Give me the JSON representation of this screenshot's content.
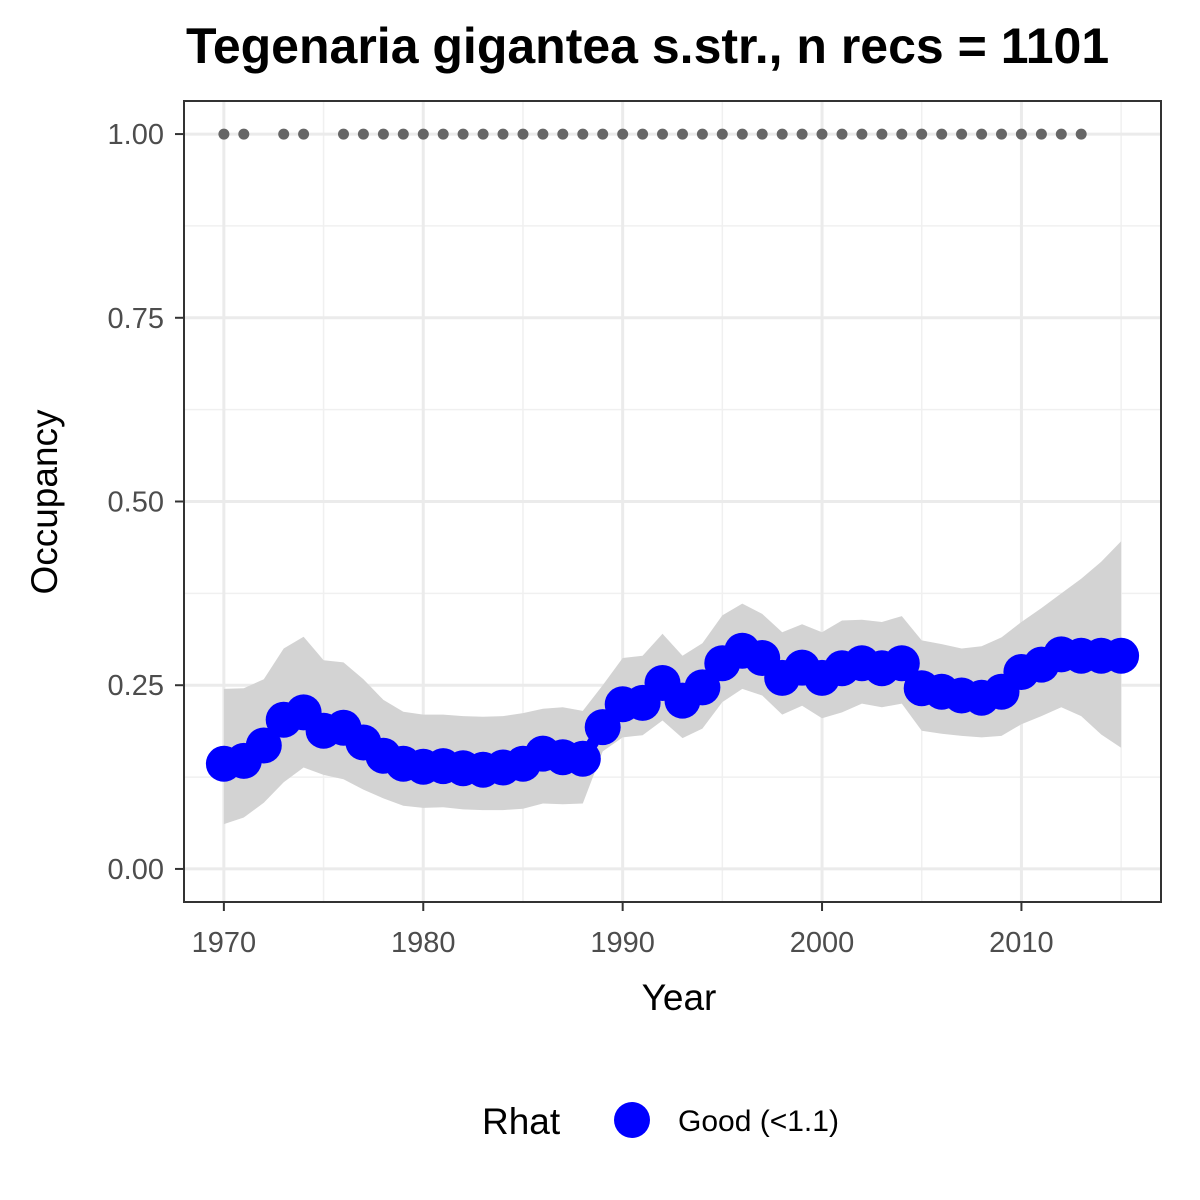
{
  "chart_data": {
    "type": "line",
    "title": "Tegenaria gigantea s.str., n recs = 1101",
    "xlabel": "Year",
    "ylabel": "Occupancy",
    "xlim": [
      1968,
      2017
    ],
    "ylim": [
      -0.045,
      1.045
    ],
    "x_ticks": [
      1970,
      1980,
      1990,
      2000,
      2010
    ],
    "y_ticks": [
      0.0,
      0.25,
      0.5,
      0.75,
      1.0
    ],
    "x_tick_labels": [
      "1970",
      "1980",
      "1990",
      "2000",
      "2010"
    ],
    "y_tick_labels": [
      "0.00",
      "0.25",
      "0.50",
      "0.75",
      "1.00"
    ],
    "grid": true,
    "legend": {
      "position": "bottom",
      "title": "Rhat",
      "entries": [
        {
          "label": "Good (<1.1)",
          "color": "#0000ff"
        }
      ]
    },
    "x": [
      1970,
      1971,
      1972,
      1973,
      1974,
      1975,
      1976,
      1977,
      1978,
      1979,
      1980,
      1981,
      1982,
      1983,
      1984,
      1985,
      1986,
      1987,
      1988,
      1989,
      1990,
      1991,
      1992,
      1993,
      1994,
      1995,
      1996,
      1997,
      1998,
      1999,
      2000,
      2001,
      2002,
      2003,
      2004,
      2005,
      2006,
      2007,
      2008,
      2009,
      2010,
      2011,
      2012,
      2013,
      2014,
      2015
    ],
    "series": [
      {
        "values": [
          0.143,
          0.147,
          0.168,
          0.203,
          0.213,
          0.188,
          0.192,
          0.172,
          0.154,
          0.143,
          0.139,
          0.14,
          0.137,
          0.135,
          0.138,
          0.143,
          0.157,
          0.152,
          0.15,
          0.193,
          0.224,
          0.226,
          0.253,
          0.229,
          0.247,
          0.28,
          0.297,
          0.287,
          0.26,
          0.274,
          0.26,
          0.273,
          0.28,
          0.273,
          0.28,
          0.246,
          0.241,
          0.236,
          0.233,
          0.241,
          0.268,
          0.278,
          0.292,
          0.29,
          0.29,
          0.29
        ],
        "lower": [
          0.061,
          0.07,
          0.09,
          0.118,
          0.138,
          0.128,
          0.122,
          0.108,
          0.096,
          0.086,
          0.083,
          0.084,
          0.081,
          0.08,
          0.08,
          0.082,
          0.089,
          0.088,
          0.089,
          0.16,
          0.179,
          0.182,
          0.202,
          0.178,
          0.191,
          0.227,
          0.245,
          0.236,
          0.21,
          0.222,
          0.205,
          0.213,
          0.225,
          0.22,
          0.225,
          0.188,
          0.184,
          0.181,
          0.179,
          0.181,
          0.197,
          0.208,
          0.22,
          0.208,
          0.183,
          0.165
        ],
        "upper": [
          0.245,
          0.246,
          0.258,
          0.3,
          0.316,
          0.284,
          0.281,
          0.258,
          0.23,
          0.214,
          0.21,
          0.21,
          0.208,
          0.207,
          0.208,
          0.212,
          0.218,
          0.22,
          0.215,
          0.25,
          0.287,
          0.29,
          0.32,
          0.29,
          0.307,
          0.345,
          0.361,
          0.347,
          0.322,
          0.333,
          0.322,
          0.338,
          0.339,
          0.336,
          0.344,
          0.311,
          0.306,
          0.3,
          0.303,
          0.315,
          0.336,
          0.355,
          0.375,
          0.395,
          0.418,
          0.446
        ],
        "color": "#0000ff",
        "band_color": "#d3d3d3"
      }
    ],
    "record_years": [
      1970,
      1971,
      1973,
      1974,
      1976,
      1977,
      1978,
      1979,
      1980,
      1981,
      1982,
      1983,
      1984,
      1985,
      1986,
      1987,
      1988,
      1989,
      1990,
      1991,
      1992,
      1993,
      1994,
      1995,
      1996,
      1997,
      1998,
      1999,
      2000,
      2001,
      2002,
      2003,
      2004,
      2005,
      2006,
      2007,
      2008,
      2009,
      2010,
      2011,
      2012,
      2013
    ],
    "record_level": 1.0,
    "record_color": "#666666"
  }
}
